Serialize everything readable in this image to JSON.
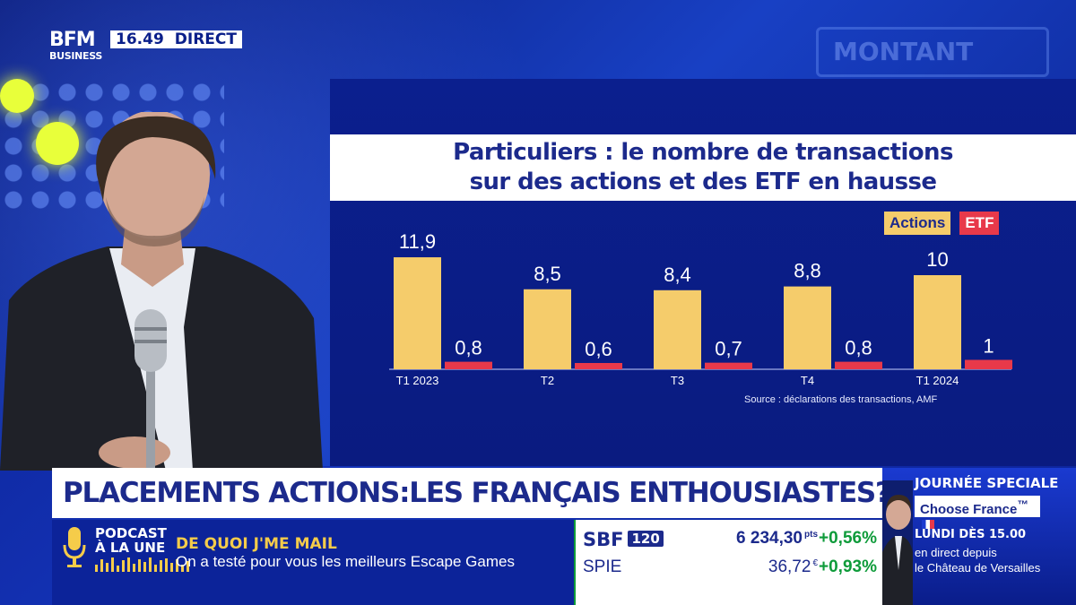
{
  "broadcast": {
    "logo_line1": "BFM",
    "logo_line2": "BUSINESS",
    "time": "16.49",
    "live_label": "DIRECT"
  },
  "background_sign": "MONTANT",
  "chart": {
    "title_line1": "Particuliers : le nombre de transactions",
    "title_line2": "sur des actions et des ETF en hausse",
    "source": "Source : déclarations des transactions, AMF"
  },
  "chart_data": {
    "type": "bar",
    "title": "Particuliers : le nombre de transactions sur des actions et des ETF en hausse",
    "categories": [
      "T1 2023",
      "T2",
      "T3",
      "T4",
      "T1 2024"
    ],
    "series": [
      {
        "name": "Actions",
        "values": [
          11.9,
          8.5,
          8.4,
          8.8,
          10
        ],
        "labels": [
          "11,9",
          "8,5",
          "8,4",
          "8,8",
          "10"
        ],
        "color": "#f5cc6b"
      },
      {
        "name": "ETF",
        "values": [
          0.8,
          0.6,
          0.7,
          0.8,
          1
        ],
        "labels": [
          "0,8",
          "0,6",
          "0,7",
          "0,8",
          "1"
        ],
        "color": "#e8394a"
      }
    ],
    "ylim": [
      0,
      12
    ],
    "legend": "top-right",
    "grid": false
  },
  "headline": "PLACEMENTS ACTIONS:LES FRANÇAIS ENTHOUSIASTES?",
  "podcast": {
    "label_line1": "PODCAST",
    "label_line2": "À LA UNE",
    "title": "DE QUOI J'ME MAIL",
    "subtitle": "On a testé pour vous les meilleurs Escape Games"
  },
  "market": {
    "index_name": "SBF",
    "index_badge": "120",
    "index_value": "6 234,30",
    "index_unit": "pts",
    "index_change": "+0,56%",
    "stock_name": "SPIE",
    "stock_value": "36,72",
    "stock_unit": "€",
    "stock_change": "+0,93%",
    "positive_color": "#0e9b3a"
  },
  "special": {
    "title": "JOURNÉE SPECIALE",
    "tag": "Choose France",
    "tag_mark": "™",
    "date": "LUNDI DÈS 15.00",
    "line1": "en direct depuis",
    "line2": "le Château de Versailles"
  }
}
